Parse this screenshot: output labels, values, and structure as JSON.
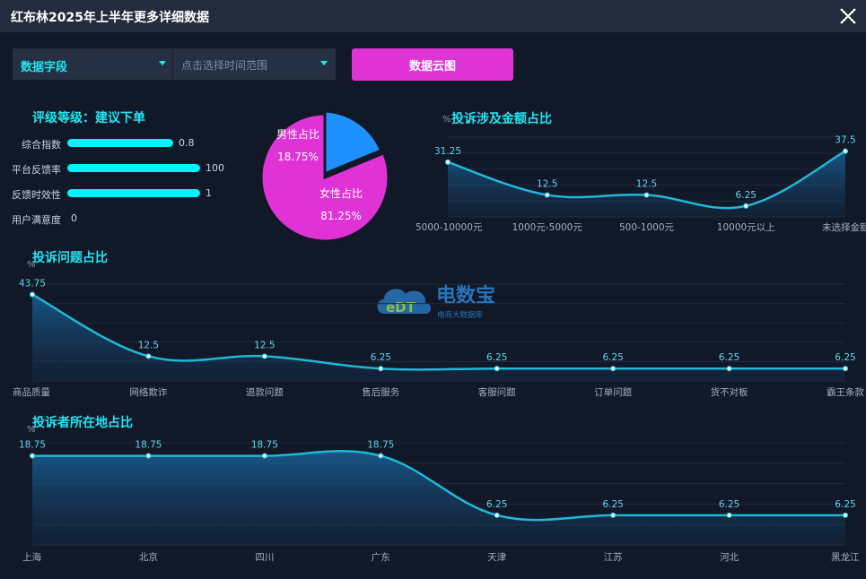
{
  "window": {
    "title": "红布林2025年上半年更多详细数据"
  },
  "filters": {
    "field_label": "数据字段",
    "range_placeholder": "点击选择时间范围",
    "cloud_button": "数据云图"
  },
  "rating": {
    "title": "评级等级：建议下单",
    "items": [
      {
        "label": "综合指数",
        "value": "0.8",
        "fraction": 0.8
      },
      {
        "label": "平台反馈率",
        "value": "100",
        "fraction": 1.0
      },
      {
        "label": "反馈时效性",
        "value": "1",
        "fraction": 1.0
      },
      {
        "label": "用户满意度",
        "value": "0",
        "fraction": 0
      }
    ]
  },
  "watermark": {
    "brand": "电数宝",
    "sub": "电商大数据库",
    "logo": "eDT"
  },
  "colors": {
    "accent": "#22e6f0",
    "pink": "#e033d6",
    "blue": "#1e90ff",
    "line": "#1fb8d8"
  },
  "chart_data": [
    {
      "type": "pie",
      "categories": [
        "男性占比",
        "女性占比"
      ],
      "values": [
        18.75,
        81.25
      ],
      "labels": [
        "18.75%",
        "81.25%"
      ]
    },
    {
      "type": "area",
      "title": "投诉涉及金额占比",
      "ylabel": "%",
      "categories": [
        "5000-10000元",
        "1000元-5000元",
        "500-1000元",
        "10000元以上",
        "未选择金额"
      ],
      "values": [
        31.25,
        12.5,
        12.5,
        6.25,
        37.5
      ],
      "value_labels": [
        "31.25",
        "12.5",
        "12.5",
        "6.25",
        "37.5"
      ]
    },
    {
      "type": "area",
      "title": "投诉问题占比",
      "ylabel": "%",
      "categories": [
        "商品质量",
        "网络欺诈",
        "退款问题",
        "售后服务",
        "客服问题",
        "订单问题",
        "货不对板",
        "霸王条款"
      ],
      "values": [
        43.75,
        12.5,
        12.5,
        6.25,
        6.25,
        6.25,
        6.25,
        6.25
      ],
      "value_labels": [
        "43.75",
        "12.5",
        "12.5",
        "6.25",
        "6.25",
        "6.25",
        "6.25",
        "6.25"
      ]
    },
    {
      "type": "area",
      "title": "投诉者所在地占比",
      "ylabel": "%",
      "categories": [
        "上海",
        "北京",
        "四川",
        "广东",
        "天津",
        "江苏",
        "河北",
        "黑龙江"
      ],
      "values": [
        18.75,
        18.75,
        18.75,
        18.75,
        6.25,
        6.25,
        6.25,
        6.25
      ],
      "value_labels": [
        "18.75",
        "18.75",
        "18.75",
        "18.75",
        "6.25",
        "6.25",
        "6.25",
        "6.25"
      ]
    }
  ]
}
